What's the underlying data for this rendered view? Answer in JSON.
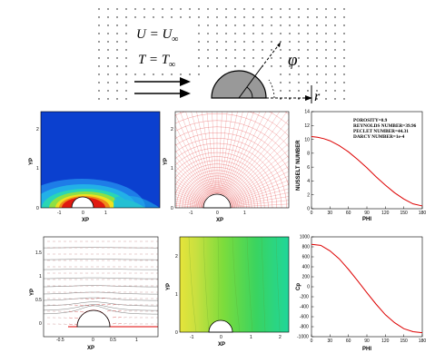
{
  "schematic": {
    "u_eq": "U = U",
    "u_sub": "∞",
    "t_eq": "T = T",
    "t_sub": "∞",
    "phi": "φ",
    "r": "r"
  },
  "panels": {
    "temperature": {
      "xlabel": "XP",
      "ylabel": "YP",
      "xticks": [
        "-1",
        "0",
        "1"
      ],
      "yticks": [
        "0",
        "1",
        "2"
      ]
    },
    "grid": {
      "xlabel": "XP",
      "ylabel": "YP",
      "xticks": [
        "-1",
        "0",
        "1"
      ],
      "yticks": [
        "0",
        "1",
        "2"
      ]
    },
    "streamlines": {
      "xlabel": "XP",
      "ylabel": "YP",
      "xticks": [
        "-0.5",
        "0",
        "0.5",
        "1"
      ],
      "yticks": [
        "0",
        "0.5",
        "1",
        "1.5"
      ]
    },
    "pressure": {
      "xlabel": "XP",
      "ylabel": "YP",
      "xticks": [
        "-1",
        "0",
        "1",
        "2"
      ],
      "yticks": [
        "0",
        "1",
        "2"
      ]
    }
  },
  "legend": {
    "porosity": "POROSITY=0.9",
    "reynolds": "REYNOLDS NUMBER=39.96",
    "peclet": "PECLET NUMBER=44.31",
    "darcy": "DARCY NUMBER=1e-4"
  },
  "chart_data": [
    {
      "type": "line",
      "xlabel": "PHI",
      "ylabel": "NUSSELT NUMBER",
      "xlim": [
        0,
        180
      ],
      "ylim": [
        0,
        14
      ],
      "xticks": [
        0,
        30,
        60,
        90,
        120,
        150,
        180
      ],
      "yticks": [
        0,
        2,
        4,
        6,
        8,
        10,
        12,
        14
      ],
      "series": [
        {
          "color": "#dd0000",
          "x": [
            0,
            10,
            20,
            30,
            45,
            60,
            75,
            90,
            105,
            120,
            135,
            150,
            165,
            180
          ],
          "y": [
            10.4,
            10.3,
            10.1,
            9.8,
            9.1,
            8.2,
            7.1,
            5.9,
            4.6,
            3.4,
            2.3,
            1.4,
            0.7,
            0.4
          ]
        }
      ]
    },
    {
      "type": "line",
      "xlabel": "PHI",
      "ylabel": "Cp",
      "xlim": [
        0,
        180
      ],
      "ylim": [
        -1000,
        1000
      ],
      "xticks": [
        0,
        30,
        60,
        90,
        120,
        150,
        180
      ],
      "yticks": [
        -1000,
        -800,
        -600,
        -400,
        -200,
        0,
        200,
        400,
        600,
        800,
        1000
      ],
      "series": [
        {
          "color": "#dd0000",
          "x": [
            0,
            15,
            30,
            45,
            60,
            75,
            90,
            105,
            120,
            135,
            150,
            165,
            180
          ],
          "y": [
            850,
            830,
            720,
            560,
            350,
            120,
            -120,
            -350,
            -560,
            -720,
            -840,
            -900,
            -920
          ]
        }
      ]
    }
  ]
}
